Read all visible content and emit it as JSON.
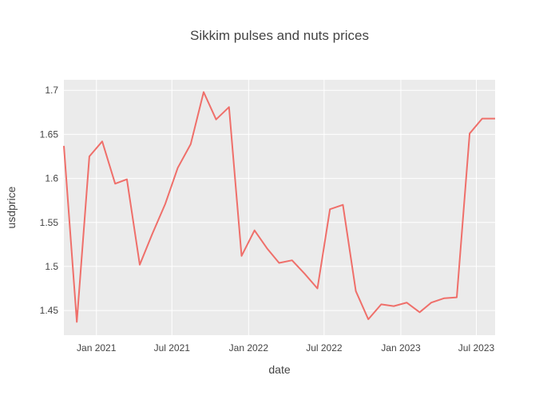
{
  "chart_data": {
    "type": "line",
    "title": "Sikkim pulses and nuts prices",
    "xlabel": "date",
    "ylabel": "usdprice",
    "x_tick_labels": [
      "Jan 2021",
      "Jul 2021",
      "Jan 2022",
      "Jul 2022",
      "Jan 2023",
      "Jul 2023"
    ],
    "y_tick_labels": [
      "1.45",
      "1.5",
      "1.55",
      "1.6",
      "1.65",
      "1.7"
    ],
    "x_ticks": [
      "2021-01-01",
      "2021-07-01",
      "2022-01-01",
      "2022-07-01",
      "2023-01-01",
      "2023-07-01"
    ],
    "y_ticks": [
      1.45,
      1.5,
      1.55,
      1.6,
      1.65,
      1.7
    ],
    "xlim": [
      "2020-10-15",
      "2023-08-15"
    ],
    "ylim": [
      1.422,
      1.712
    ],
    "grid": true,
    "legend": "none",
    "colors": {
      "line": "#EF6F6A",
      "plot_bg": "#EBEBEB",
      "grid": "#FFFFFF"
    },
    "series": [
      {
        "x": [
          "2020-10-15",
          "2020-11-15",
          "2020-12-15",
          "2021-01-15",
          "2021-02-15",
          "2021-03-15",
          "2021-04-15",
          "2021-05-15",
          "2021-06-15",
          "2021-07-15",
          "2021-08-15",
          "2021-09-15",
          "2021-10-15",
          "2021-11-15",
          "2021-12-15",
          "2022-01-15",
          "2022-02-15",
          "2022-03-15",
          "2022-04-15",
          "2022-05-15",
          "2022-06-15",
          "2022-07-15",
          "2022-08-15",
          "2022-09-15",
          "2022-10-15",
          "2022-11-15",
          "2022-12-15",
          "2023-01-15",
          "2023-02-15",
          "2023-03-15",
          "2023-04-15",
          "2023-05-15",
          "2023-06-15",
          "2023-07-15",
          "2023-08-15"
        ],
        "y": [
          1.637,
          1.437,
          1.625,
          1.642,
          1.594,
          1.599,
          1.502,
          1.537,
          1.571,
          1.612,
          1.639,
          1.698,
          1.667,
          1.681,
          1.512,
          1.541,
          1.52,
          1.504,
          1.507,
          1.492,
          1.475,
          1.565,
          1.57,
          1.472,
          1.44,
          1.457,
          1.455,
          1.459,
          1.448,
          1.459,
          1.464,
          1.465,
          1.651,
          1.668,
          1.668
        ]
      }
    ]
  }
}
